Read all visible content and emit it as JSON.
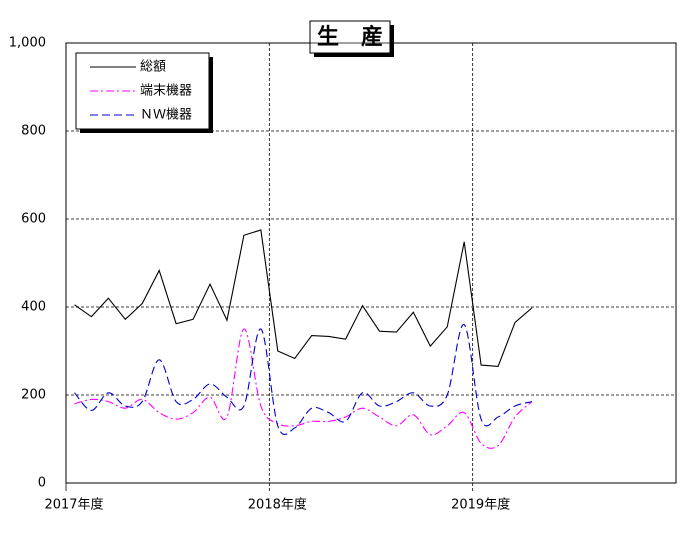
{
  "chart_data": {
    "type": "line",
    "title": "生　産",
    "x": [
      0.5,
      1.5,
      2.5,
      3.5,
      4.5,
      5.5,
      6.5,
      7.5,
      8.5,
      9.5,
      10.5,
      11.5,
      12.5,
      13.5,
      14.5,
      15.5,
      16.5,
      17.5,
      18.5,
      19.5,
      20.5,
      21.5,
      22.5,
      23.5,
      24.5,
      25.5,
      26.5,
      27.5
    ],
    "series": [
      {
        "name": "総額",
        "color": "#000000",
        "line_style": "solid",
        "smooth": false,
        "values": [
          405,
          378,
          420,
          372,
          408,
          483,
          362,
          372,
          452,
          370,
          563,
          575,
          300,
          283,
          335,
          333,
          327,
          403,
          345,
          343,
          388,
          311,
          355,
          548,
          268,
          265,
          365,
          398
        ]
      },
      {
        "name": "端末機器",
        "color": "#ff00ff",
        "line_style": "dashdot",
        "smooth": true,
        "values": [
          180,
          190,
          185,
          170,
          190,
          160,
          145,
          160,
          195,
          150,
          350,
          175,
          135,
          130,
          140,
          140,
          150,
          170,
          150,
          130,
          155,
          110,
          130,
          160,
          90,
          85,
          150,
          185
        ]
      },
      {
        "name": "ＮＷ機器",
        "color": "#0000cc",
        "line_style": "dashed",
        "smooth": true,
        "values": [
          205,
          165,
          205,
          175,
          185,
          280,
          185,
          190,
          225,
          195,
          175,
          350,
          130,
          125,
          170,
          160,
          140,
          205,
          175,
          185,
          205,
          175,
          200,
          360,
          145,
          150,
          175,
          185
        ]
      }
    ],
    "xlim": [
      0,
      36
    ],
    "xticks": [
      {
        "value": 0,
        "label": "2017年度"
      },
      {
        "value": 12,
        "label": "2018年度"
      },
      {
        "value": 24,
        "label": "2019年度"
      }
    ],
    "ylim": [
      0,
      1000
    ],
    "yticks": [
      0,
      200,
      400,
      600,
      800,
      {
        "value": 1000,
        "label": "1,000"
      }
    ],
    "grid": true,
    "legend": "upper left"
  }
}
